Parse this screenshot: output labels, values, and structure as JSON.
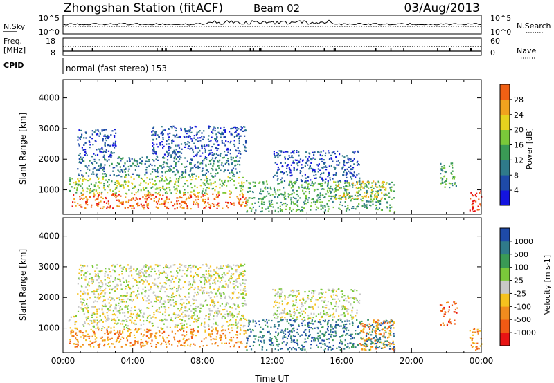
{
  "header": {
    "station": "Zhongshan Station (fitACF)",
    "beam": "Beam 02",
    "date": "03/Aug/2013"
  },
  "summary": {
    "nsky_label": "N.Sky",
    "nsky_ticks": [
      "10^5",
      "10^0"
    ],
    "nsearch_label": "N.Search",
    "nsearch_ticks": [
      "10^5",
      "10^0"
    ],
    "freq_label": [
      "Freq.",
      "[MHz]"
    ],
    "freq_ticks": [
      "18",
      "8"
    ],
    "nave_label": "Nave",
    "nave_ticks": [
      "60",
      "0"
    ],
    "cpid_label": "CPID",
    "cpid_text": "normal (fast stereo) 153"
  },
  "colors": {
    "power": [
      "#1414e0",
      "#1e4aa8",
      "#2f7a8a",
      "#3a9a55",
      "#7ac83a",
      "#e6d21e",
      "#f0a21e",
      "#f06014",
      "#e81414"
    ],
    "velocity": [
      "#e81414",
      "#f05a14",
      "#f08c1e",
      "#f5c21e",
      "#c8c8c8",
      "#7ac83a",
      "#3a9a55",
      "#2f7a8a",
      "#1e4aa8"
    ]
  },
  "chart_data": [
    {
      "type": "heatmap",
      "quantity": "power",
      "xlabel": "Time UT",
      "ylabel": "Slant Range [km]",
      "xlim": [
        0,
        24
      ],
      "ylim": [
        200,
        4600
      ],
      "xticks": [
        "00:00",
        "04:00",
        "08:00",
        "12:00",
        "16:00",
        "20:00",
        "00:00"
      ],
      "yticks": [
        "1000",
        "2000",
        "3000",
        "4000"
      ],
      "colorbar_label": "Power [dB]",
      "colorbar_ticks": [
        "28",
        "24",
        "20",
        "16",
        "12",
        "8",
        "4"
      ],
      "regions": [
        {
          "t": [
            0.5,
            10.5
          ],
          "r": [
            400,
            900
          ],
          "level": 7
        },
        {
          "t": [
            0.3,
            10.5
          ],
          "r": [
            900,
            1450
          ],
          "level": 4
        },
        {
          "t": [
            0.8,
            10.2
          ],
          "r": [
            1450,
            2100
          ],
          "level": 2
        },
        {
          "t": [
            0.8,
            3.0
          ],
          "r": [
            2100,
            3000
          ],
          "level": 1
        },
        {
          "t": [
            5.0,
            10.5
          ],
          "r": [
            2100,
            3100
          ],
          "level": 1
        },
        {
          "t": [
            10.5,
            19.0
          ],
          "r": [
            300,
            1300
          ],
          "level": 3
        },
        {
          "t": [
            12.0,
            17.0
          ],
          "r": [
            1300,
            2300
          ],
          "level": 1
        },
        {
          "t": [
            15.5,
            18.5
          ],
          "r": [
            700,
            1300
          ],
          "level": 5
        },
        {
          "t": [
            21.6,
            22.6
          ],
          "r": [
            1100,
            1900
          ],
          "level": 3
        },
        {
          "t": [
            23.3,
            24.0
          ],
          "r": [
            300,
            1000
          ],
          "level": 8
        }
      ]
    },
    {
      "type": "heatmap",
      "quantity": "velocity",
      "xlabel": "Time UT",
      "ylabel": "Slant Range [km]",
      "xlim": [
        0,
        24
      ],
      "ylim": [
        200,
        4600
      ],
      "xticks": [
        "00:00",
        "04:00",
        "08:00",
        "12:00",
        "16:00",
        "20:00",
        "00:00"
      ],
      "yticks": [
        "1000",
        "2000",
        "3000",
        "4000"
      ],
      "colorbar_label": "Velocity [m s-1]",
      "colorbar_ticks": [
        "1000",
        "500",
        "100",
        "25",
        "-25",
        "-100",
        "-500",
        "-1000"
      ],
      "regions": [
        {
          "t": [
            0.3,
            10.5
          ],
          "r": [
            400,
            1000
          ],
          "level": 2
        },
        {
          "t": [
            0.3,
            10.5
          ],
          "r": [
            1000,
            1500
          ],
          "level": 4
        },
        {
          "t": [
            0.8,
            10.5
          ],
          "r": [
            1500,
            3100
          ],
          "level": 4
        },
        {
          "t": [
            10.5,
            19.0
          ],
          "r": [
            300,
            1300
          ],
          "level": 7
        },
        {
          "t": [
            12.0,
            17.0
          ],
          "r": [
            1300,
            2300
          ],
          "level": 4
        },
        {
          "t": [
            17.0,
            19.0
          ],
          "r": [
            300,
            1300
          ],
          "level": 2
        },
        {
          "t": [
            21.6,
            22.6
          ],
          "r": [
            1100,
            1900
          ],
          "level": 1
        },
        {
          "t": [
            23.3,
            24.0
          ],
          "r": [
            300,
            1000
          ],
          "level": 2
        }
      ]
    }
  ]
}
